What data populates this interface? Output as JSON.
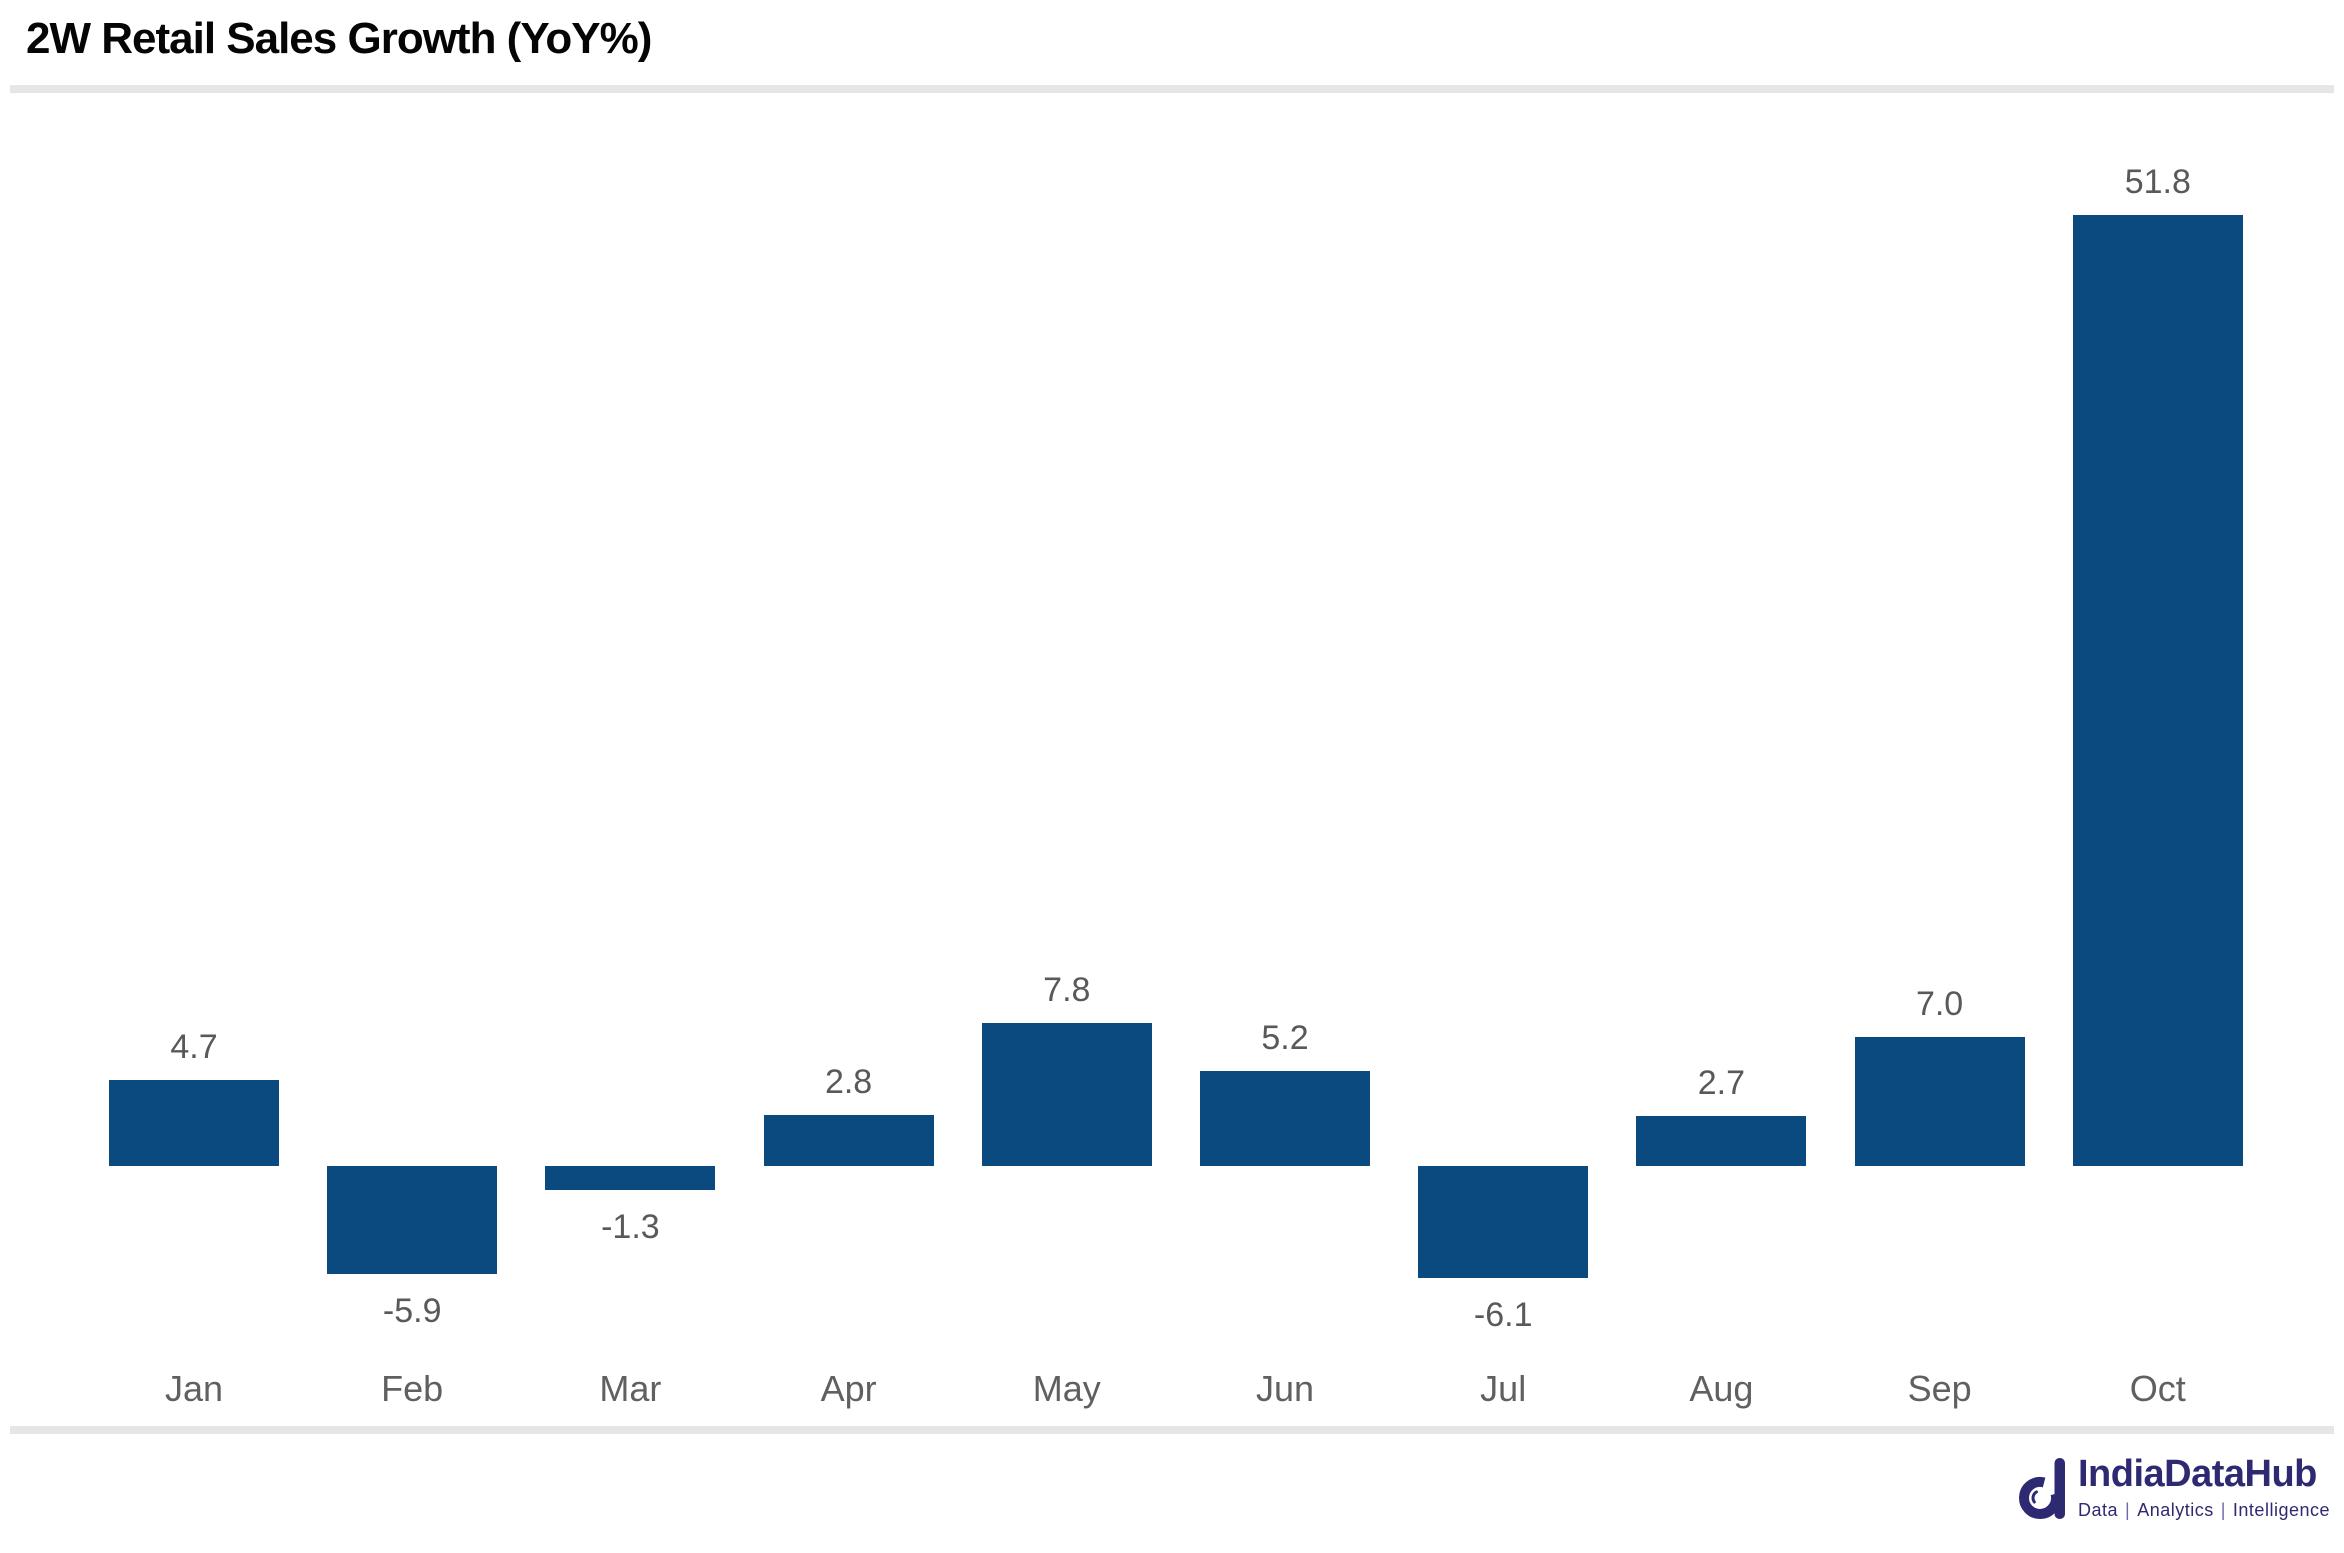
{
  "chart_data": {
    "type": "bar",
    "title": "2W Retail Sales Growth (YoY%)",
    "categories": [
      "Jan",
      "Feb",
      "Mar",
      "Apr",
      "May",
      "Jun",
      "Jul",
      "Aug",
      "Sep",
      "Oct"
    ],
    "values": [
      4.7,
      -5.9,
      -1.3,
      2.8,
      7.8,
      5.2,
      -6.1,
      2.7,
      7.0,
      51.8
    ],
    "data_labels": [
      "4.7",
      "-5.9",
      "-1.3",
      "2.8",
      "7.8",
      "5.2",
      "-6.1",
      "2.7",
      "7.0",
      "51.8"
    ],
    "xlabel": "",
    "ylabel": "",
    "legend": "none",
    "gridlines": "off",
    "axes_visible": false,
    "data_labels_visible": true
  },
  "footer": {
    "brand": "IndiaDataHub",
    "tagline_parts": [
      "Data",
      "Analytics",
      "Intelligence"
    ],
    "tagline_separator": "|"
  },
  "colors": {
    "bar": "#0b4a7e",
    "value_label": "#595959",
    "axis_label": "#606060",
    "separator": "#e6e6e6",
    "title": "#050505",
    "logo_navy": "#2e2a72",
    "tagline_pipe": "#6f6aa8",
    "background": "#ffffff"
  }
}
